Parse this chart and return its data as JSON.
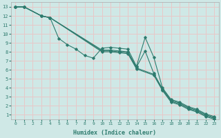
{
  "xlabel": "Humidex (Indice chaleur)",
  "background_color": "#cfe8e6",
  "grid_color": "#e8c8c8",
  "line_color": "#2e7b6e",
  "xlim": [
    -0.5,
    23.5
  ],
  "ylim": [
    0.5,
    13.5
  ],
  "xticks": [
    0,
    1,
    2,
    3,
    4,
    5,
    6,
    7,
    8,
    9,
    10,
    11,
    12,
    13,
    14,
    15,
    16,
    17,
    18,
    19,
    20,
    21,
    22,
    23
  ],
  "yticks": [
    1,
    2,
    3,
    4,
    5,
    6,
    7,
    8,
    9,
    10,
    11,
    12,
    13
  ],
  "series1_x": [
    0,
    1,
    3,
    4,
    5,
    6,
    7,
    8,
    9,
    10,
    11,
    12,
    13,
    14,
    15,
    16,
    17,
    18,
    19,
    20,
    21,
    22,
    23
  ],
  "series1_y": [
    13,
    13,
    12,
    11.8,
    9.5,
    8.8,
    8.3,
    7.6,
    7.3,
    8.4,
    8.5,
    8.4,
    8.3,
    6.4,
    9.6,
    7.4,
    4.0,
    2.7,
    2.4,
    1.9,
    1.6,
    1.1,
    0.8
  ],
  "series2_x": [
    0,
    1,
    3,
    4,
    10,
    11,
    12,
    13,
    14,
    15,
    16,
    17,
    18,
    19,
    20,
    21,
    22,
    23
  ],
  "series2_y": [
    13,
    13,
    12,
    11.8,
    8.2,
    8.2,
    8.1,
    8.0,
    6.3,
    8.1,
    5.6,
    3.9,
    2.6,
    2.3,
    1.8,
    1.5,
    1.0,
    0.7
  ],
  "series3_x": [
    0,
    1,
    3,
    4,
    10,
    11,
    12,
    13,
    14,
    16,
    17,
    18,
    19,
    20,
    21,
    22,
    23
  ],
  "series3_y": [
    13,
    13,
    12,
    11.8,
    8.1,
    8.1,
    8.0,
    7.9,
    6.2,
    5.5,
    3.8,
    2.5,
    2.2,
    1.7,
    1.4,
    0.9,
    0.6
  ],
  "series4_x": [
    0,
    1,
    3,
    4,
    10,
    11,
    12,
    13,
    14,
    16,
    17,
    18,
    19,
    20,
    21,
    22,
    23
  ],
  "series4_y": [
    13,
    13,
    12,
    11.8,
    8.0,
    8.0,
    7.9,
    7.8,
    6.1,
    5.4,
    3.7,
    2.4,
    2.1,
    1.6,
    1.3,
    0.8,
    0.5
  ]
}
